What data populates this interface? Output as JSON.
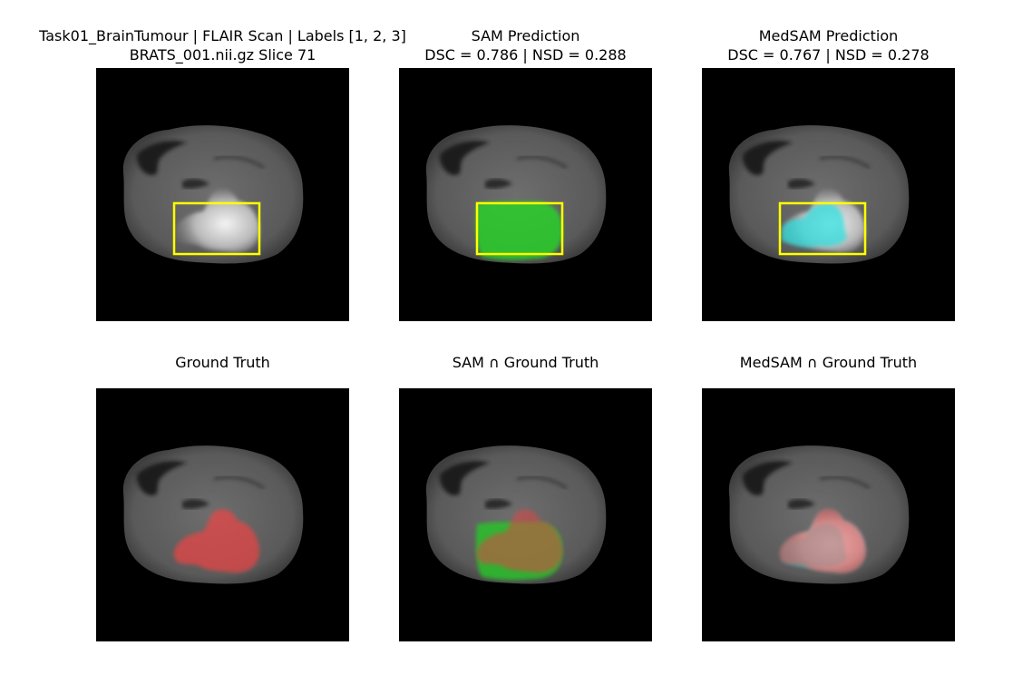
{
  "figure": {
    "panels": [
      {
        "title": [
          "Task01_BrainTumour | FLAIR Scan | Labels [1, 2, 3]",
          "BRATS_001.nii.gz Slice 71"
        ]
      },
      {
        "title": [
          "SAM Prediction",
          "DSC = 0.786 | NSD = 0.288"
        ]
      },
      {
        "title": [
          "MedSAM Prediction",
          "DSC = 0.767 | NSD = 0.278"
        ]
      },
      {
        "title": [
          "Ground Truth"
        ]
      },
      {
        "title": [
          "SAM ∩ Ground Truth"
        ]
      },
      {
        "title": [
          "MedSAM ∩ Ground Truth"
        ]
      }
    ]
  }
}
